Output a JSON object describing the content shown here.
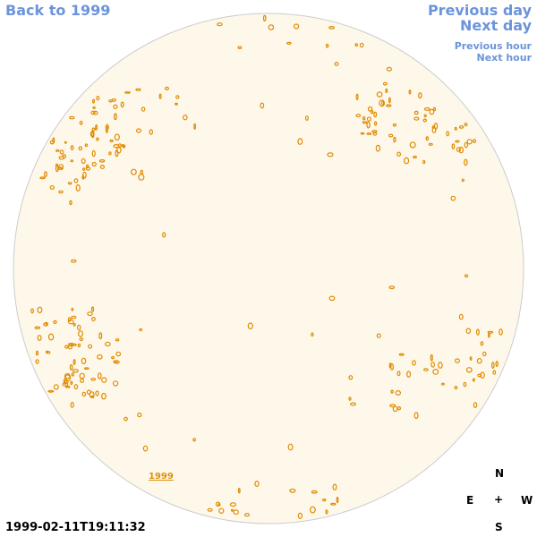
{
  "nav": {
    "back_label": "Back to 1999",
    "prev_day": "Previous day",
    "next_day": "Next day",
    "prev_hour": "Previous hour",
    "next_hour": "Next hour"
  },
  "disc": {
    "fill": "#fef8eb",
    "outline": "#cccccc",
    "contour_color": "#e08a00",
    "inner_label": "1999"
  },
  "compass": {
    "n": "N",
    "e": "E",
    "center": "+",
    "w": "W",
    "s": "S"
  },
  "timestamp": "1999-02-11T19:11:32"
}
